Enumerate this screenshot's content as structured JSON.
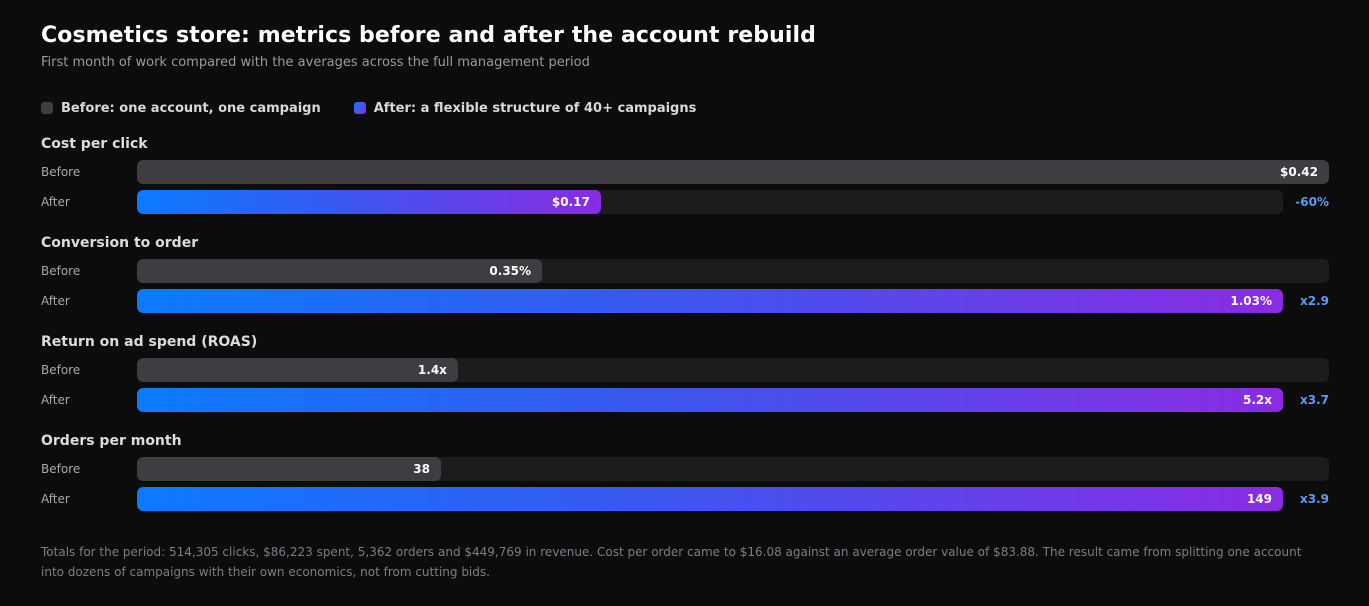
{
  "title": "Cosmetics store: metrics before and after the account rebuild",
  "subtitle": "First month of work compared with the averages across the full management period",
  "legend": {
    "before": "Before: one account, one campaign",
    "after": "After: a flexible structure of 40+ campaigns"
  },
  "colors": {
    "before": "#3d3d42",
    "after_start": "#0a7bff",
    "after_end": "#8a2be2",
    "delta": "#5b9bf5",
    "background": "#0c0c0c"
  },
  "row_labels": {
    "before": "Before",
    "after": "After"
  },
  "chart_data": {
    "type": "bar",
    "orientation": "horizontal",
    "series_names": [
      "Before: one account, one campaign",
      "After: a flexible structure of 40+ campaigns"
    ],
    "metrics": [
      {
        "name": "Cost per click",
        "before": 0.42,
        "after": 0.17,
        "before_label": "$0.42",
        "after_label": "$0.17",
        "delta": "-60%",
        "max": 0.42
      },
      {
        "name": "Conversion to order",
        "before": 0.35,
        "after": 1.03,
        "before_label": "0.35%",
        "after_label": "1.03%",
        "delta": "x2.9",
        "max": 1.03
      },
      {
        "name": "Return on ad spend (ROAS)",
        "before": 1.4,
        "after": 5.2,
        "before_label": "1.4x",
        "after_label": "5.2x",
        "delta": "x3.7",
        "max": 5.2
      },
      {
        "name": "Orders per month",
        "before": 38,
        "after": 149,
        "before_label": "38",
        "after_label": "149",
        "delta": "x3.9",
        "max": 149
      }
    ]
  },
  "footnote": "Totals for the period: 514,305 clicks, $86,223 spent, 5,362 orders and $449,769 in revenue. Cost per order came to $16.08 against an average order value of $83.88. The result came from splitting one account into dozens of campaigns with their own economics, not from cutting bids."
}
